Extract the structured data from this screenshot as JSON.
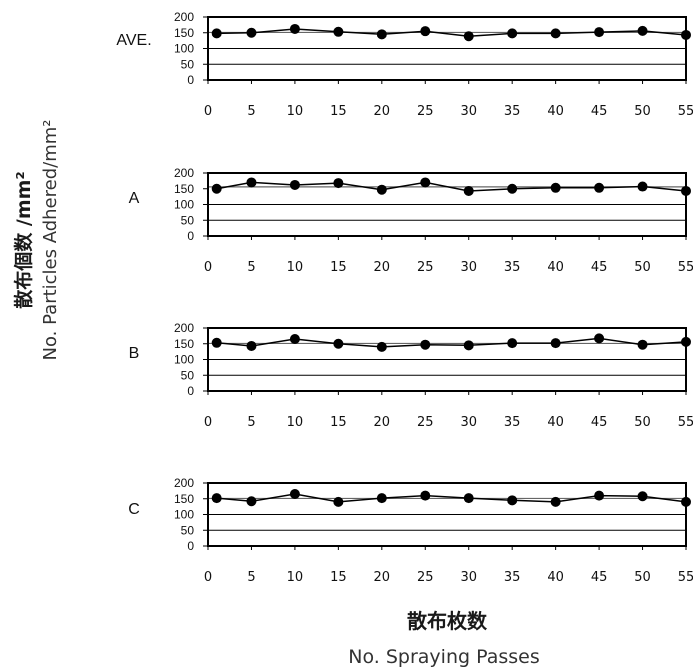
{
  "ylabel_jp": "散布個数 /mm²",
  "ylabel_en": "No. Particles Adhered/mm²",
  "xlabel_jp": "散布枚数",
  "xlabel_en": "No. Spraying Passes",
  "colors": {
    "series": "#000000",
    "mean_line": "#666666",
    "grid": "#000000",
    "frame": "#000000"
  },
  "chart_data": [
    {
      "type": "line",
      "label": "AVE.",
      "x": [
        1,
        5,
        10,
        15,
        20,
        25,
        30,
        35,
        40,
        45,
        50,
        55
      ],
      "values": [
        148,
        150,
        162,
        153,
        145,
        155,
        139,
        148,
        148,
        152,
        156,
        143
      ],
      "mean": 151,
      "xticks": [
        0,
        5,
        10,
        15,
        20,
        25,
        30,
        35,
        40,
        45,
        50,
        55
      ],
      "yticks": [
        0,
        50,
        100,
        150,
        200
      ],
      "xlim": [
        0,
        55
      ],
      "ylim": [
        0,
        200
      ],
      "grid": "horizontal at 50 and 100"
    },
    {
      "type": "line",
      "label": "A",
      "x": [
        1,
        5,
        10,
        15,
        20,
        25,
        30,
        35,
        40,
        45,
        50,
        55
      ],
      "values": [
        150,
        170,
        162,
        168,
        147,
        170,
        143,
        150,
        153,
        153,
        157,
        143
      ],
      "mean": 156,
      "xticks": [
        0,
        5,
        10,
        15,
        20,
        25,
        30,
        35,
        40,
        45,
        50,
        55
      ],
      "yticks": [
        0,
        50,
        100,
        150,
        200
      ],
      "xlim": [
        0,
        55
      ],
      "ylim": [
        0,
        200
      ],
      "grid": "horizontal at 50 and 100"
    },
    {
      "type": "line",
      "label": "B",
      "x": [
        1,
        5,
        10,
        15,
        20,
        25,
        30,
        35,
        40,
        45,
        50,
        55
      ],
      "values": [
        153,
        143,
        165,
        150,
        140,
        147,
        145,
        152,
        152,
        167,
        147,
        156
      ],
      "mean": 151,
      "xticks": [
        0,
        5,
        10,
        15,
        20,
        25,
        30,
        35,
        40,
        45,
        50,
        55
      ],
      "yticks": [
        0,
        50,
        100,
        150,
        200
      ],
      "xlim": [
        0,
        55
      ],
      "ylim": [
        0,
        200
      ],
      "grid": "horizontal at 50 and 100"
    },
    {
      "type": "line",
      "label": "C",
      "x": [
        1,
        5,
        10,
        15,
        20,
        25,
        30,
        35,
        40,
        45,
        50,
        55
      ],
      "values": [
        152,
        142,
        165,
        140,
        152,
        160,
        152,
        145,
        140,
        160,
        158,
        140
      ],
      "mean": 151,
      "xticks": [
        0,
        5,
        10,
        15,
        20,
        25,
        30,
        35,
        40,
        45,
        50,
        55
      ],
      "yticks": [
        0,
        50,
        100,
        150,
        200
      ],
      "xlim": [
        0,
        55
      ],
      "ylim": [
        0,
        200
      ],
      "grid": "horizontal at 50 and 100"
    }
  ]
}
